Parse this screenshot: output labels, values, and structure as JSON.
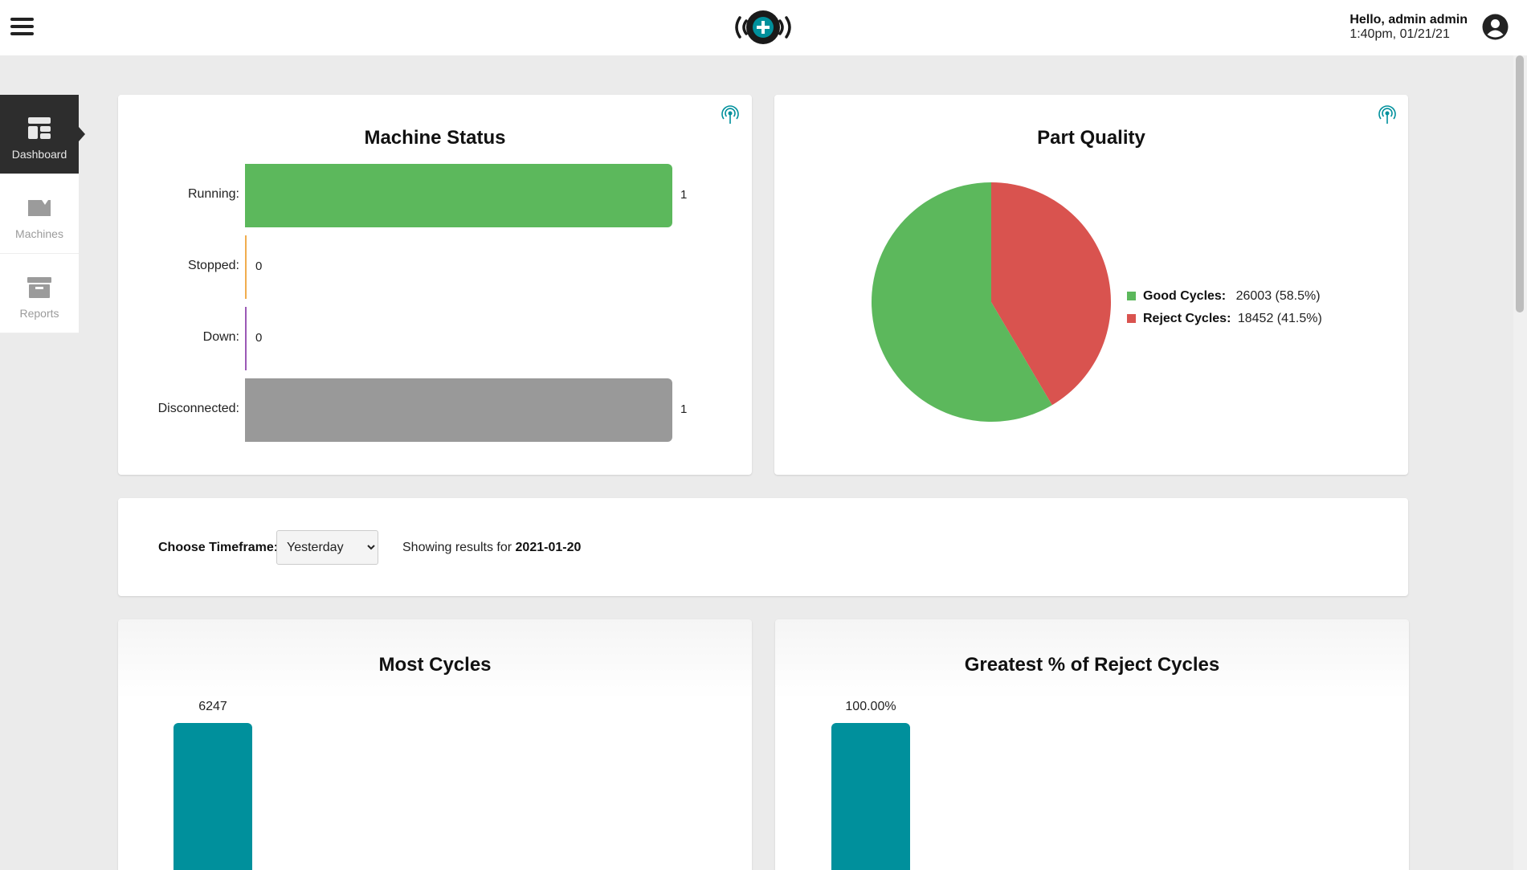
{
  "header": {
    "greeting": "Hello, admin admin",
    "datetime": "1:40pm, 01/21/21"
  },
  "sidebar": {
    "items": [
      {
        "label": "Dashboard",
        "icon": "dashboard-icon",
        "active": true
      },
      {
        "label": "Machines",
        "icon": "machines-icon",
        "active": false
      },
      {
        "label": "Reports",
        "icon": "reports-icon",
        "active": false
      }
    ]
  },
  "machine_status": {
    "title": "Machine Status",
    "rows": [
      {
        "label": "Running:",
        "value": "1",
        "color": "#5cb85c"
      },
      {
        "label": "Stopped:",
        "value": "0",
        "color": "#f0ad4e"
      },
      {
        "label": "Down:",
        "value": "0",
        "color": "#9b59b6"
      },
      {
        "label": "Disconnected:",
        "value": "1",
        "color": "#999999"
      }
    ]
  },
  "part_quality": {
    "title": "Part Quality",
    "legend": [
      {
        "name": "Good Cycles:",
        "value": "26003 (58.5%)",
        "color": "#5cb85c"
      },
      {
        "name": "Reject Cycles:",
        "value": "18452 (41.5%)",
        "color": "#d9534f"
      }
    ]
  },
  "timeframe": {
    "label": "Choose Timeframe:",
    "selected": "Yesterday",
    "result_prefix": "Showing results for",
    "result_date": "2021-01-20"
  },
  "most_cycles": {
    "title": "Most Cycles",
    "top_value": "6247"
  },
  "reject_pct": {
    "title": "Greatest % of Reject Cycles",
    "top_value": "100.00%"
  },
  "colors": {
    "accent": "#00909c",
    "good": "#5cb85c",
    "reject": "#d9534f"
  },
  "chart_data": [
    {
      "type": "bar",
      "title": "Machine Status",
      "categories": [
        "Running:",
        "Stopped:",
        "Down:",
        "Disconnected:"
      ],
      "values": [
        1,
        0,
        0,
        1
      ],
      "orientation": "horizontal"
    },
    {
      "type": "pie",
      "title": "Part Quality",
      "categories": [
        "Good Cycles",
        "Reject Cycles"
      ],
      "values": [
        26003,
        18452
      ],
      "legend": "right"
    },
    {
      "type": "bar",
      "title": "Most Cycles",
      "values": [
        6247
      ]
    },
    {
      "type": "bar",
      "title": "Greatest % of Reject Cycles",
      "values": [
        100.0
      ]
    }
  ]
}
